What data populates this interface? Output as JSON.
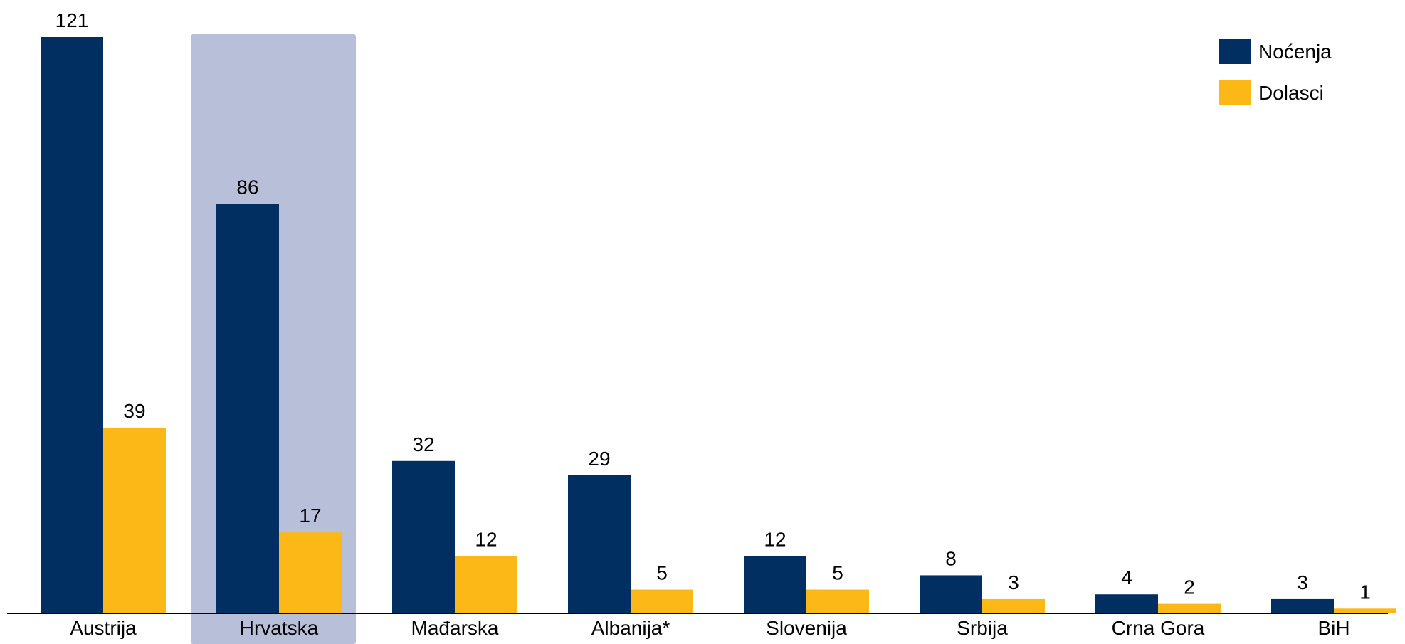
{
  "chart_data": {
    "type": "bar",
    "title": "",
    "xlabel": "",
    "ylabel": "",
    "ylim": [
      0,
      121
    ],
    "grid": false,
    "legend_position": "top-right",
    "highlighted_category": "Hrvatska",
    "categories": [
      "Austrija",
      "Hrvatska",
      "Mađarska",
      "Albanija*",
      "Slovenija",
      "Srbija",
      "Crna Gora",
      "BiH"
    ],
    "series": [
      {
        "name": "Noćenja",
        "color": "#012f61",
        "values": [
          121,
          86,
          32,
          29,
          12,
          8,
          4,
          3
        ]
      },
      {
        "name": "Dolasci",
        "color": "#fcb817",
        "values": [
          39,
          17,
          12,
          5,
          5,
          3,
          2,
          1
        ]
      }
    ],
    "colors": {
      "highlight": "#b8bfd8",
      "axis": "#000000"
    }
  }
}
